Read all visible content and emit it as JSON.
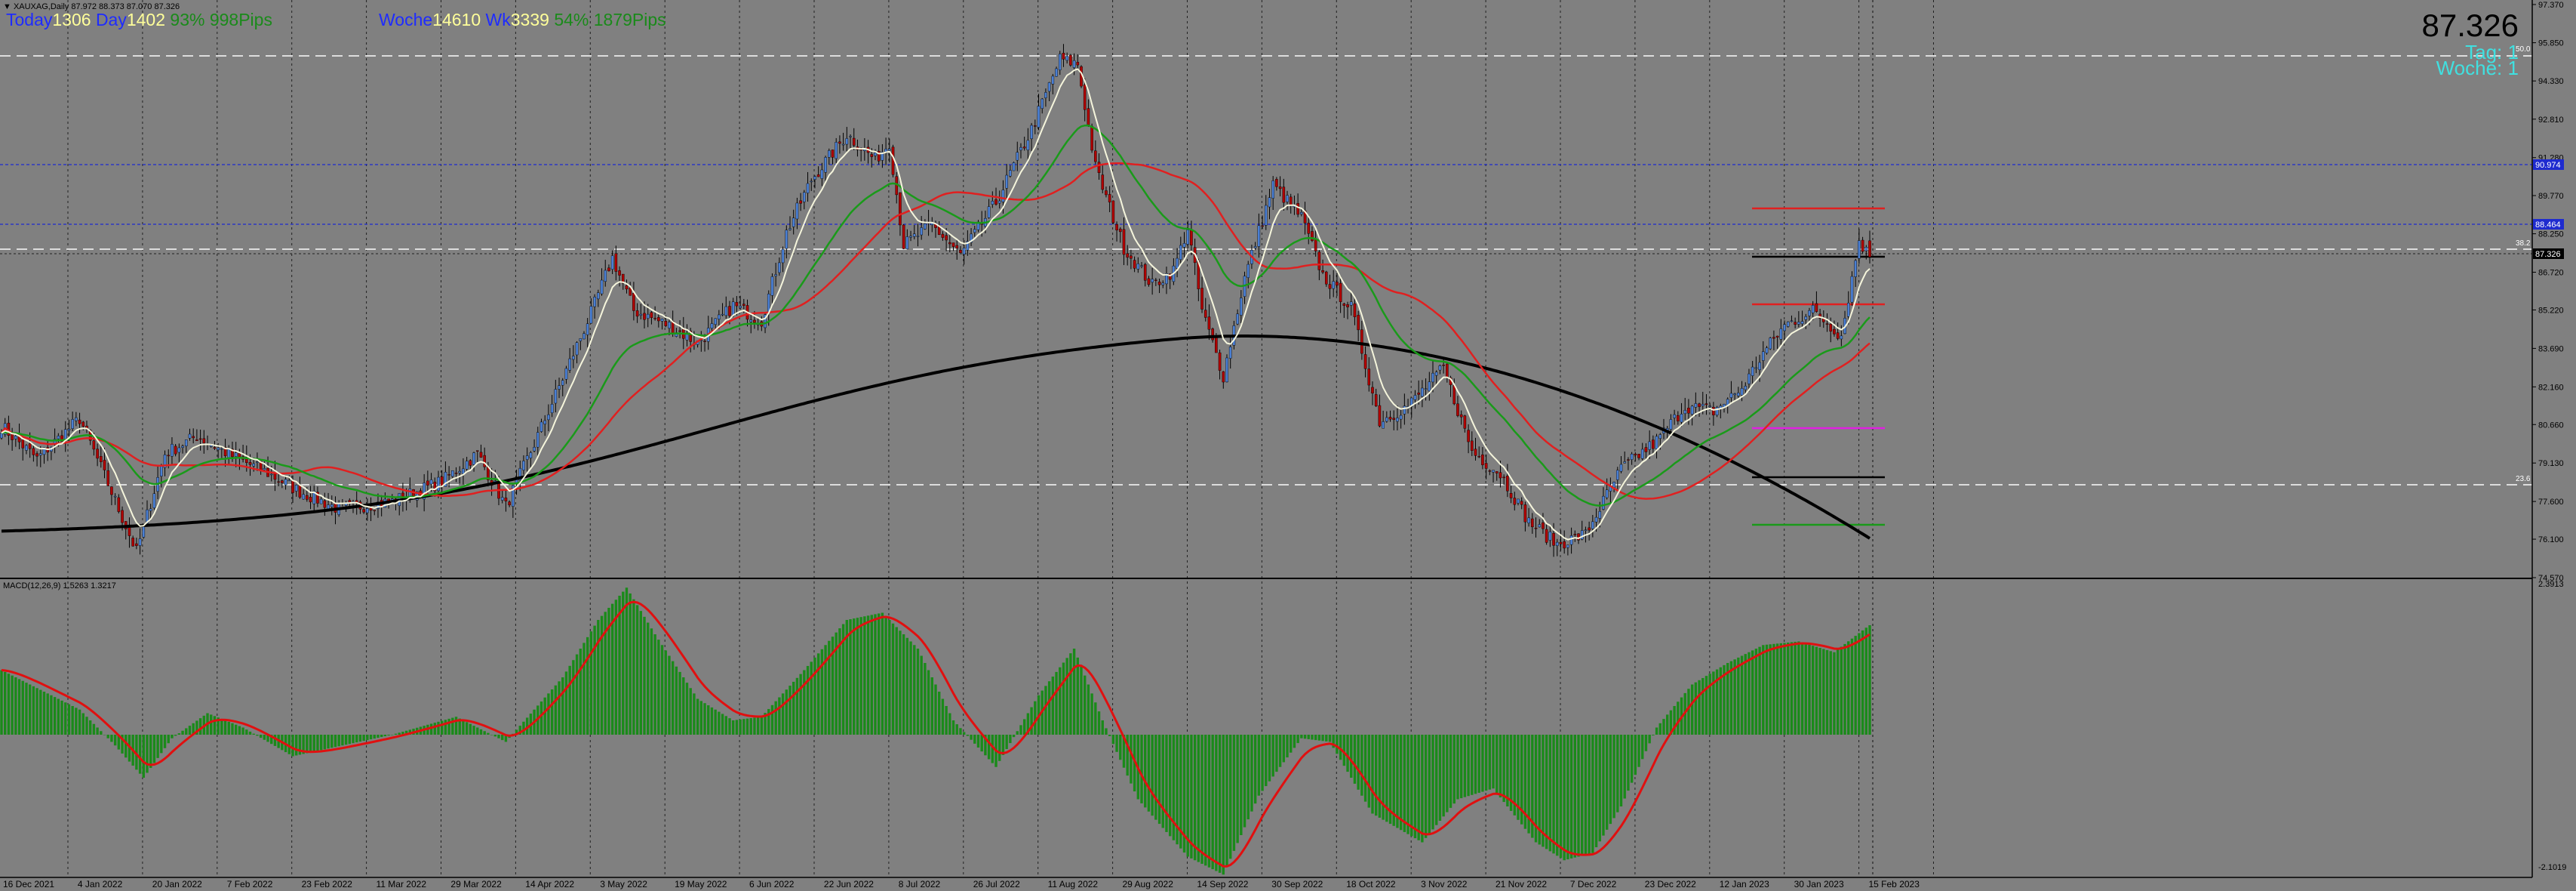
{
  "window": {
    "title": "▼ XAUXAG,Daily  87.972 88.373 87.070 87.326",
    "macd_label": "MACD(12,26,9) 1.5263 1.3217"
  },
  "overlay": {
    "today_label": "Today",
    "today_value": "1306",
    "day_label": "Day",
    "day_value": "1402",
    "day_pct": "93%",
    "day_pips": "998Pips",
    "week_label": "Woche",
    "week_value": "1461",
    "week_sep": "0",
    "wk_label": "Wk",
    "wk_value": "3339",
    "wk_pct": "54%",
    "wk_pips": "1879Pips",
    "price": "87.326",
    "tag_label": "Tag:",
    "tag_value": "1",
    "woche_label": "Woche:",
    "woche_value": "1"
  },
  "price_axis": {
    "ticks": [
      "97.370",
      "95.850",
      "94.330",
      "92.810",
      "91.280",
      "89.770",
      "88.250",
      "86.720",
      "85.220",
      "83.690",
      "82.160",
      "80.660",
      "79.130",
      "77.600",
      "76.100",
      "74.570"
    ],
    "marker_blue_1": "90.974",
    "marker_blue_2": "88.464",
    "marker_black": "87.326",
    "fib_38": "38.2",
    "fib_50": "50.0",
    "fib_23": "23.6"
  },
  "macd_axis": {
    "top": "2.3913",
    "bottom": "-2.1019"
  },
  "time_axis": [
    "16 Dec 2021",
    "4 Jan 2022",
    "20 Jan 2022",
    "7 Feb 2022",
    "23 Feb 2022",
    "11 Mar 2022",
    "29 Mar 2022",
    "14 Apr 2022",
    "3 May 2022",
    "19 May 2022",
    "6 Jun 2022",
    "22 Jun 2022",
    "8 Jul 2022",
    "26 Jul 2022",
    "11 Aug 2022",
    "29 Aug 2022",
    "14 Sep 2022",
    "30 Sep 2022",
    "18 Oct 2022",
    "3 Nov 2022",
    "21 Nov 2022",
    "7 Dec 2022",
    "23 Dec 2022",
    "12 Jan 2023",
    "30 Jan 2023",
    "15 Feb 2023"
  ],
  "colors": {
    "background": "#808080",
    "bull_body": "#4a7fd4",
    "bear_body": "#b00000",
    "wick": "#000000",
    "ema_fast": "#f5f5dc",
    "ma_mid": "#1a9a1a",
    "ma_red": "#e02020",
    "ma_slow": "#000000",
    "macd_hist": "#1a8a1a",
    "macd_signal": "#e01010"
  },
  "chart_data": {
    "type": "candlestick",
    "symbol": "XAUXAG",
    "timeframe": "Daily",
    "ohlc_last": {
      "open": 87.972,
      "high": 88.373,
      "low": 87.07,
      "close": 87.326
    },
    "ylim": [
      74.57,
      97.37
    ],
    "close_anchors": [
      [
        0,
        80.6
      ],
      [
        10,
        79.3
      ],
      [
        22,
        80.9
      ],
      [
        30,
        78.3
      ],
      [
        38,
        75.6
      ],
      [
        46,
        79.5
      ],
      [
        55,
        80.2
      ],
      [
        65,
        79.4
      ],
      [
        74,
        78.8
      ],
      [
        84,
        78.0
      ],
      [
        95,
        77.3
      ],
      [
        110,
        77.6
      ],
      [
        124,
        78.4
      ],
      [
        134,
        79.5
      ],
      [
        142,
        77.4
      ],
      [
        150,
        79.9
      ],
      [
        158,
        82.5
      ],
      [
        166,
        85.1
      ],
      [
        172,
        87.3
      ],
      [
        178,
        85.2
      ],
      [
        188,
        84.6
      ],
      [
        196,
        83.9
      ],
      [
        206,
        85.4
      ],
      [
        214,
        84.8
      ],
      [
        221,
        88.3
      ],
      [
        228,
        90.4
      ],
      [
        238,
        92.2
      ],
      [
        246,
        91.2
      ],
      [
        250,
        91.9
      ],
      [
        254,
        87.8
      ],
      [
        262,
        88.6
      ],
      [
        270,
        87.4
      ],
      [
        280,
        89.5
      ],
      [
        290,
        92.4
      ],
      [
        298,
        95.2
      ],
      [
        303,
        95.0
      ],
      [
        308,
        90.9
      ],
      [
        316,
        87.7
      ],
      [
        324,
        86.2
      ],
      [
        330,
        86.8
      ],
      [
        334,
        88.5
      ],
      [
        338,
        85.2
      ],
      [
        344,
        82.6
      ],
      [
        350,
        86.5
      ],
      [
        358,
        90.2
      ],
      [
        366,
        88.9
      ],
      [
        372,
        86.6
      ],
      [
        380,
        85.3
      ],
      [
        388,
        80.8
      ],
      [
        396,
        81.4
      ],
      [
        406,
        82.9
      ],
      [
        414,
        79.6
      ],
      [
        422,
        78.7
      ],
      [
        430,
        76.8
      ],
      [
        438,
        75.9
      ],
      [
        446,
        76.3
      ],
      [
        456,
        78.9
      ],
      [
        466,
        80.0
      ],
      [
        474,
        81.4
      ],
      [
        482,
        81.2
      ],
      [
        490,
        82.1
      ],
      [
        496,
        83.5
      ],
      [
        502,
        84.6
      ],
      [
        510,
        85.2
      ],
      [
        518,
        84.2
      ],
      [
        523,
        88.0
      ],
      [
        526,
        87.3
      ]
    ],
    "macd_anchors": [
      [
        0,
        0.9
      ],
      [
        14,
        0.55
      ],
      [
        22,
        0.35
      ],
      [
        32,
        -0.15
      ],
      [
        40,
        -0.6
      ],
      [
        48,
        -0.05
      ],
      [
        58,
        0.3
      ],
      [
        68,
        0.1
      ],
      [
        82,
        -0.3
      ],
      [
        96,
        -0.15
      ],
      [
        110,
        0.0
      ],
      [
        128,
        0.25
      ],
      [
        142,
        -0.1
      ],
      [
        158,
        0.8
      ],
      [
        168,
        1.6
      ],
      [
        176,
        2.05
      ],
      [
        184,
        1.4
      ],
      [
        196,
        0.5
      ],
      [
        206,
        0.2
      ],
      [
        214,
        0.25
      ],
      [
        226,
        0.9
      ],
      [
        238,
        1.6
      ],
      [
        248,
        1.7
      ],
      [
        258,
        1.2
      ],
      [
        268,
        0.2
      ],
      [
        280,
        -0.45
      ],
      [
        292,
        0.55
      ],
      [
        302,
        1.2
      ],
      [
        310,
        0.2
      ],
      [
        320,
        -0.9
      ],
      [
        334,
        -1.7
      ],
      [
        344,
        -1.95
      ],
      [
        354,
        -0.85
      ],
      [
        366,
        -0.05
      ],
      [
        374,
        -0.1
      ],
      [
        386,
        -1.1
      ],
      [
        400,
        -1.5
      ],
      [
        410,
        -0.9
      ],
      [
        420,
        -0.75
      ],
      [
        432,
        -1.5
      ],
      [
        440,
        -1.75
      ],
      [
        448,
        -1.65
      ],
      [
        456,
        -1.0
      ],
      [
        466,
        0.1
      ],
      [
        476,
        0.7
      ],
      [
        486,
        1.0
      ],
      [
        496,
        1.25
      ],
      [
        506,
        1.3
      ],
      [
        516,
        1.15
      ],
      [
        526,
        1.53
      ]
    ],
    "moving_averages": [
      "fast EMA (white)",
      "mid MA (green)",
      "MA (red)",
      "slow MA (black)"
    ],
    "indicator": "MACD(12,26,9)",
    "macd_value": 1.5263,
    "macd_signal": 1.3217
  }
}
